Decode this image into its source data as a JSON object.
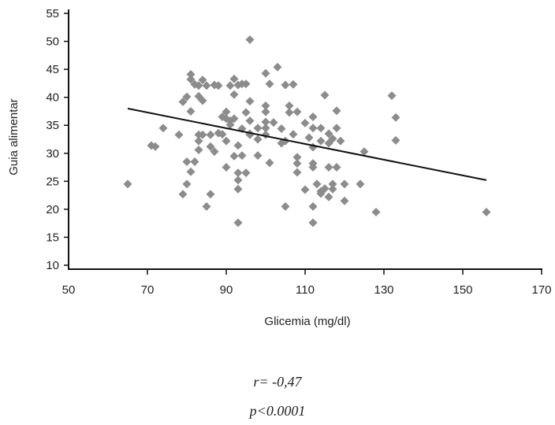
{
  "chart_data": {
    "type": "scatter",
    "xlabel": "Glicemia (mg/dl)",
    "ylabel": "Guia alimentar",
    "xlim": [
      50,
      170
    ],
    "ylim": [
      10,
      55
    ],
    "x_ticks": [
      "50",
      "70",
      "90",
      "110",
      "130",
      "150",
      "170"
    ],
    "y_ticks": [
      "10",
      "15",
      "20",
      "25",
      "30",
      "35",
      "40",
      "45",
      "50",
      "55"
    ],
    "trendline": {
      "x": [
        65,
        156
      ],
      "y": [
        38.0,
        25.2
      ]
    },
    "marker_color": "#8c8c8c",
    "line_color": "#111111",
    "points": [
      [
        65,
        24.5
      ],
      [
        71,
        31.4
      ],
      [
        72,
        31.2
      ],
      [
        74,
        34.5
      ],
      [
        78,
        33.3
      ],
      [
        79,
        39.2
      ],
      [
        79,
        22.7
      ],
      [
        80,
        40.1
      ],
      [
        80,
        28.5
      ],
      [
        80,
        24.5
      ],
      [
        81,
        44.1
      ],
      [
        81,
        43.2
      ],
      [
        81,
        37.5
      ],
      [
        81,
        26.7
      ],
      [
        82,
        28.5
      ],
      [
        82,
        42.3
      ],
      [
        83,
        42.1
      ],
      [
        83,
        40.2
      ],
      [
        83,
        33.3
      ],
      [
        83,
        32.2
      ],
      [
        83,
        30.6
      ],
      [
        84,
        43.1
      ],
      [
        84,
        39.4
      ],
      [
        84,
        33.3
      ],
      [
        85,
        42.1
      ],
      [
        85,
        20.5
      ],
      [
        86,
        22.7
      ],
      [
        86,
        33.3
      ],
      [
        86,
        31.2
      ],
      [
        87,
        42.2
      ],
      [
        87,
        30.3
      ],
      [
        88,
        33.6
      ],
      [
        88,
        42.1
      ],
      [
        89,
        36.5
      ],
      [
        89,
        33.4
      ],
      [
        90,
        37.4
      ],
      [
        90,
        36.2
      ],
      [
        90,
        32.2
      ],
      [
        90,
        27.5
      ],
      [
        91,
        35.1
      ],
      [
        91,
        42.1
      ],
      [
        91,
        35.8
      ],
      [
        92,
        43.3
      ],
      [
        92,
        40.5
      ],
      [
        92,
        36.2
      ],
      [
        92,
        29.5
      ],
      [
        93,
        42.2
      ],
      [
        93,
        31.4
      ],
      [
        93,
        26.5
      ],
      [
        93,
        25.2
      ],
      [
        93,
        23.6
      ],
      [
        93,
        17.6
      ],
      [
        94,
        42.4
      ],
      [
        94,
        34.4
      ],
      [
        94,
        29.6
      ],
      [
        95,
        42.4
      ],
      [
        95,
        37.3
      ],
      [
        95,
        26.5
      ],
      [
        96,
        50.3
      ],
      [
        96,
        39.3
      ],
      [
        96,
        35.8
      ],
      [
        96,
        33.5
      ],
      [
        96,
        33.3
      ],
      [
        98,
        34.5
      ],
      [
        98,
        32.5
      ],
      [
        98,
        29.6
      ],
      [
        100,
        44.3
      ],
      [
        100,
        38.5
      ],
      [
        100,
        37.4
      ],
      [
        100,
        35.6
      ],
      [
        100,
        34.5
      ],
      [
        100,
        33.3
      ],
      [
        101,
        42.4
      ],
      [
        101,
        28.3
      ],
      [
        102,
        35.5
      ],
      [
        103,
        45.4
      ],
      [
        104,
        34.4
      ],
      [
        104,
        31.8
      ],
      [
        105,
        42.2
      ],
      [
        105,
        20.5
      ],
      [
        105,
        32.2
      ],
      [
        106,
        38.5
      ],
      [
        106,
        37.3
      ],
      [
        107,
        42.3
      ],
      [
        107,
        33.4
      ],
      [
        108,
        37.4
      ],
      [
        108,
        29.3
      ],
      [
        108,
        28.2
      ],
      [
        108,
        26.6
      ],
      [
        110,
        35.4
      ],
      [
        110,
        23.5
      ],
      [
        111,
        32.8
      ],
      [
        112,
        36.5
      ],
      [
        112,
        34.5
      ],
      [
        112,
        31.1
      ],
      [
        112,
        28.2
      ],
      [
        112,
        27.5
      ],
      [
        112,
        20.5
      ],
      [
        112,
        17.6
      ],
      [
        113,
        24.5
      ],
      [
        114,
        34.5
      ],
      [
        114,
        32.2
      ],
      [
        114,
        23.2
      ],
      [
        114,
        22.8
      ],
      [
        115,
        40.4
      ],
      [
        115,
        23.7
      ],
      [
        116,
        33.5
      ],
      [
        116,
        31.8
      ],
      [
        116,
        27.5
      ],
      [
        116,
        22.2
      ],
      [
        117,
        32.6
      ],
      [
        117,
        24.5
      ],
      [
        117,
        23.6
      ],
      [
        118,
        37.6
      ],
      [
        118,
        34.5
      ],
      [
        118,
        27.5
      ],
      [
        119,
        32.2
      ],
      [
        120,
        24.5
      ],
      [
        120,
        21.5
      ],
      [
        124,
        24.5
      ],
      [
        125,
        30.3
      ],
      [
        128,
        19.5
      ],
      [
        132,
        40.3
      ],
      [
        133,
        36.4
      ],
      [
        133,
        32.3
      ],
      [
        156,
        19.5
      ]
    ]
  },
  "stats": {
    "r": "r= -0,47",
    "p": "p<0.0001"
  }
}
